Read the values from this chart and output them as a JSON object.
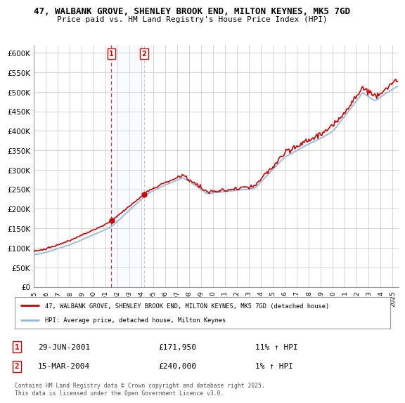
{
  "title": "47, WALBANK GROVE, SHENLEY BROOK END, MILTON KEYNES, MK5 7GD",
  "subtitle": "Price paid vs. HM Land Registry's House Price Index (HPI)",
  "ylim": [
    0,
    620000
  ],
  "yticks": [
    0,
    50000,
    100000,
    150000,
    200000,
    250000,
    300000,
    350000,
    400000,
    450000,
    500000,
    550000,
    600000
  ],
  "ytick_labels": [
    "£0",
    "£50K",
    "£100K",
    "£150K",
    "£200K",
    "£250K",
    "£300K",
    "£350K",
    "£400K",
    "£450K",
    "£500K",
    "£550K",
    "£600K"
  ],
  "sale1_date": "29-JUN-2001",
  "sale1_price": 171950,
  "sale1_hpi_pct": "11%",
  "sale2_date": "15-MAR-2004",
  "sale2_price": 240000,
  "sale2_hpi_pct": "1%",
  "sale1_x": 2001.49,
  "sale2_x": 2004.21,
  "legend_line1": "47, WALBANK GROVE, SHENLEY BROOK END, MILTON KEYNES, MK5 7GD (detached house)",
  "legend_line2": "HPI: Average price, detached house, Milton Keynes",
  "footer": "Contains HM Land Registry data © Crown copyright and database right 2025.\nThis data is licensed under the Open Government Licence v3.0.",
  "hpi_color": "#90b8d8",
  "price_color": "#cc0000",
  "shade_color": "#ddeeff",
  "background_color": "#ffffff",
  "grid_color": "#cccccc",
  "xlim_start": 1995.0,
  "xlim_end": 2025.5
}
